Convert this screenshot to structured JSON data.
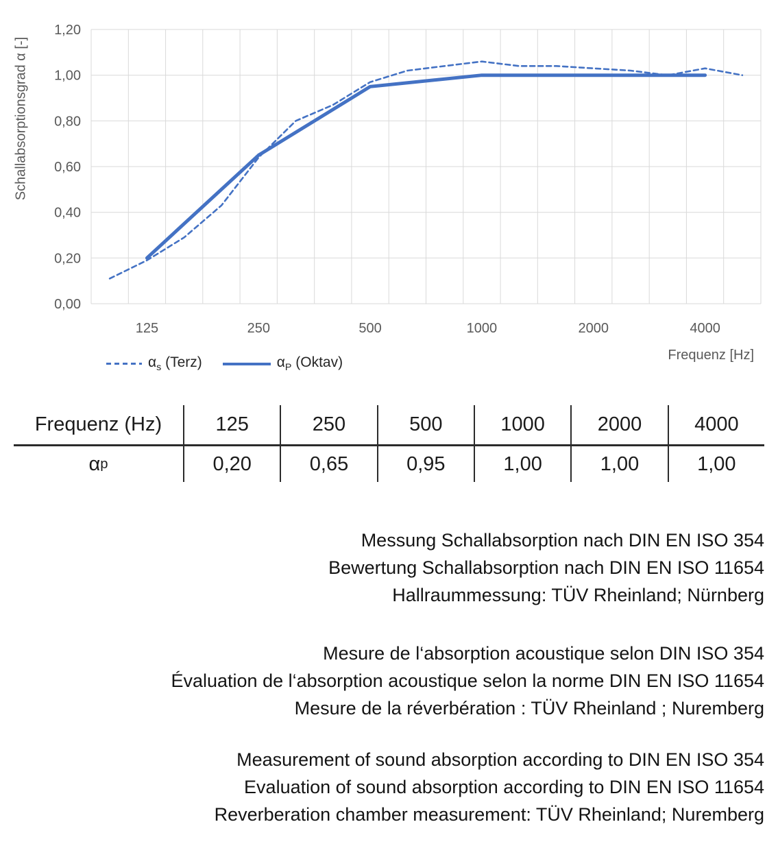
{
  "colors": {
    "series_blue": "#4472C4",
    "gridline_gray": "#d9d9d9",
    "axis_text_gray": "#595959",
    "text_dark": "#1a1a1a",
    "table_line_dark": "#2b2b2b"
  },
  "chart_data": {
    "type": "line",
    "title": "",
    "xlabel": "Frequenz [Hz]",
    "ylabel": "Schallabsorptionsgrad α [-]",
    "x_scale": "third-octave category axis (log spacing)",
    "grid": true,
    "legend_position": "bottom-left",
    "ylim": [
      0,
      1.2
    ],
    "categories": [
      100,
      125,
      160,
      200,
      250,
      315,
      400,
      500,
      630,
      800,
      1000,
      1250,
      1600,
      2000,
      2500,
      3150,
      4000,
      5000
    ],
    "x_tick_labels": [
      "125",
      "250",
      "500",
      "1000",
      "2000",
      "4000"
    ],
    "y_tick_labels": [
      "0,00",
      "0,20",
      "0,40",
      "0,60",
      "0,80",
      "1,00",
      "1,20"
    ],
    "series": [
      {
        "name": "αs (Terz)",
        "style": "dashed",
        "color": "#4472C4",
        "x": [
          100,
          125,
          160,
          200,
          250,
          315,
          400,
          500,
          630,
          800,
          1000,
          1250,
          1600,
          2000,
          2500,
          3150,
          4000,
          5000
        ],
        "values": [
          0.11,
          0.19,
          0.29,
          0.43,
          0.64,
          0.8,
          0.87,
          0.97,
          1.02,
          1.04,
          1.06,
          1.04,
          1.04,
          1.03,
          1.02,
          1.0,
          1.03,
          1.0
        ]
      },
      {
        "name": "αP (Oktav)",
        "style": "solid",
        "color": "#4472C4",
        "x": [
          125,
          250,
          500,
          1000,
          2000,
          4000
        ],
        "values": [
          0.2,
          0.65,
          0.95,
          1.0,
          1.0,
          1.0
        ]
      }
    ]
  },
  "legend": {
    "items": [
      {
        "symbol": "α",
        "sub": "s",
        "rest": " (Terz)",
        "style": "dashed"
      },
      {
        "symbol": "α",
        "sub": "P",
        "rest": " (Oktav)",
        "style": "solid"
      }
    ]
  },
  "table": {
    "header": [
      "Frequenz (Hz)",
      "125",
      "250",
      "500",
      "1000",
      "2000",
      "4000"
    ],
    "row_label": {
      "symbol": "α",
      "sub": "p"
    },
    "values": [
      "0,20",
      "0,65",
      "0,95",
      "1,00",
      "1,00",
      "1,00"
    ]
  },
  "notes": {
    "german": [
      "Messung Schallabsorption nach DIN EN ISO 354",
      "Bewertung Schallabsorption nach DIN EN ISO 11654",
      "Hallraummessung: TÜV Rheinland; Nürnberg"
    ],
    "french": [
      "Mesure de l‘absorption acoustique selon DIN ISO 354",
      "Évaluation de l‘absorption acoustique selon la norme DIN EN ISO 11654",
      "Mesure de la réverbération : TÜV Rheinland ; Nuremberg"
    ],
    "english": [
      "Measurement of sound absorption according to DIN EN ISO 354",
      "Evaluation of sound absorption according to DIN EN ISO 11654",
      "Reverberation chamber measurement: TÜV Rheinland; Nuremberg"
    ]
  }
}
